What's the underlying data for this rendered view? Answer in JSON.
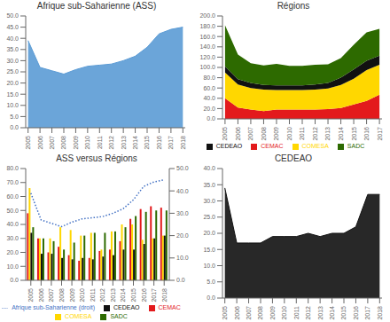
{
  "chart_data": [
    {
      "type": "area",
      "title": "Afrique sub-Saharienne (ASS)",
      "x": [
        2005,
        2006,
        2007,
        2008,
        2009,
        2010,
        2011,
        2012,
        2013,
        2014,
        2015,
        2016,
        2017,
        2018
      ],
      "values": [
        39,
        27,
        25.5,
        24,
        26,
        27.5,
        28,
        28.5,
        30,
        32,
        36,
        42,
        44,
        45
      ],
      "color": "#5b9bd5",
      "xlim": [
        2004.8,
        2018.2
      ],
      "xticks": [
        2005,
        2006,
        2007,
        2008,
        2009,
        2010,
        2011,
        2012,
        2013,
        2014,
        2015,
        2016,
        2017,
        2018
      ],
      "ylim": [
        0,
        50
      ],
      "yticks": [
        {
          "value": 0,
          "label": "0.0"
        },
        {
          "value": 5,
          "label": "5.0"
        },
        {
          "value": 10,
          "label": "10.0"
        },
        {
          "value": 15,
          "label": "15.0"
        },
        {
          "value": 20,
          "label": "20.0"
        },
        {
          "value": 25,
          "label": "25.0"
        },
        {
          "value": 30,
          "label": "30.0"
        },
        {
          "value": 35,
          "label": "35.0"
        },
        {
          "value": 40,
          "label": "40.0"
        },
        {
          "value": 45,
          "label": "45.0"
        },
        {
          "value": 50,
          "label": "50.0"
        }
      ],
      "grid": false
    },
    {
      "type": "area",
      "title": "Régions",
      "stacked": true,
      "x": [
        2005,
        2006,
        2007,
        2008,
        2009,
        2010,
        2011,
        2012,
        2013,
        2014,
        2015,
        2016,
        2017
      ],
      "series": [
        {
          "name": "CEMAC",
          "color": "#e31a1c",
          "values": [
            40,
            22,
            18,
            15,
            18,
            18,
            18,
            18,
            19,
            21,
            28,
            35,
            47
          ]
        },
        {
          "name": "COMESA",
          "color": "#ffd700",
          "values": [
            50,
            45,
            42,
            42,
            38,
            38,
            38,
            39,
            40,
            45,
            50,
            60,
            58
          ]
        },
        {
          "name": "CEDEAO",
          "color": "#111111",
          "values": [
            12,
            10,
            10,
            9,
            9,
            9,
            9,
            10,
            11,
            14,
            18,
            18,
            18
          ]
        },
        {
          "name": "SADC",
          "color": "#2d6a00",
          "values": [
            80,
            48,
            38,
            38,
            42,
            38,
            38,
            38,
            36,
            38,
            48,
            55,
            52
          ]
        }
      ],
      "xlim": [
        2004.8,
        2017.2
      ],
      "xticks": [
        2005,
        2006,
        2007,
        2008,
        2009,
        2010,
        2011,
        2012,
        2013,
        2014,
        2015,
        2016,
        2017
      ],
      "ylim": [
        0,
        200
      ],
      "yticks": [
        {
          "value": 0,
          "label": "0.0"
        },
        {
          "value": 20,
          "label": "20.0"
        },
        {
          "value": 40,
          "label": "40.0"
        },
        {
          "value": 60,
          "label": "60.0"
        },
        {
          "value": 80,
          "label": "80.0"
        },
        {
          "value": 100,
          "label": "100.0"
        },
        {
          "value": 120,
          "label": "120.0"
        },
        {
          "value": 140,
          "label": "140.0"
        },
        {
          "value": 160,
          "label": "160.0"
        },
        {
          "value": 180,
          "label": "180.0"
        },
        {
          "value": 200,
          "label": "200.0"
        }
      ],
      "grid": false,
      "legend": "bottom"
    },
    {
      "type": "bar",
      "title": "ASS versus Régions",
      "categories": [
        "2005",
        "2006",
        "2007",
        "2008",
        "2009",
        "2010",
        "2011",
        "2012",
        "2013",
        "2014",
        "2015",
        "2016",
        "2017",
        "2018"
      ],
      "series": [
        {
          "name": "CEMAC",
          "color": "#e31a1c",
          "values": [
            48,
            30,
            20,
            24,
            18,
            14,
            16,
            21,
            22,
            28,
            44,
            51,
            53,
            52
          ]
        },
        {
          "name": "COMESA",
          "color": "#ffd700",
          "values": [
            66,
            30,
            30,
            38,
            36,
            32,
            34,
            22,
            35,
            40,
            40,
            29,
            30,
            32
          ]
        },
        {
          "name": "CEDEAO",
          "color": "#111111",
          "values": [
            34,
            19,
            19,
            16,
            15,
            16,
            15,
            17,
            18,
            22,
            22,
            26,
            30,
            32
          ]
        },
        {
          "name": "SADC",
          "color": "#2d6a00",
          "values": [
            38,
            30,
            28,
            22,
            27,
            32,
            34,
            34,
            35,
            38,
            46,
            49,
            50,
            50
          ]
        },
        {
          "name": "Afrique sub-Saharienne (droit)",
          "type": "line",
          "color": "#4472c4",
          "line_style": "dotted",
          "axis": "y2",
          "values": [
            39,
            27,
            25.5,
            24,
            26,
            27.5,
            28,
            28.5,
            30,
            32,
            36,
            42,
            44,
            45
          ]
        }
      ],
      "ylim": [
        0,
        80
      ],
      "yticks": [
        {
          "value": 0,
          "label": "0.0"
        },
        {
          "value": 10,
          "label": "10.0"
        },
        {
          "value": 20,
          "label": "20.0"
        },
        {
          "value": 30,
          "label": "30.0"
        },
        {
          "value": 40,
          "label": "40.0"
        },
        {
          "value": 50,
          "label": "50.0"
        },
        {
          "value": 60,
          "label": "60.0"
        },
        {
          "value": 70,
          "label": "70.0"
        },
        {
          "value": 80,
          "label": "80.0"
        }
      ],
      "y2lim": [
        0,
        50
      ],
      "y2ticks": [
        {
          "value": 0,
          "label": "0.0"
        },
        {
          "value": 10,
          "label": "10.0"
        },
        {
          "value": 20,
          "label": "20.0"
        },
        {
          "value": 30,
          "label": "30.0"
        },
        {
          "value": 40,
          "label": "40.0"
        },
        {
          "value": 50,
          "label": "50.0"
        }
      ],
      "grid": false,
      "legend": "bottom"
    },
    {
      "type": "area",
      "title": "CEDEAO",
      "x": [
        2005,
        2006,
        2007,
        2008,
        2009,
        2010,
        2011,
        2012,
        2013,
        2014,
        2015,
        2016,
        2017,
        2018
      ],
      "values": [
        34,
        17,
        17,
        17,
        19,
        19,
        19,
        20,
        19,
        20,
        20,
        22,
        32,
        32
      ],
      "color": "#111111",
      "xlim": [
        2004.8,
        2018.2
      ],
      "xticks": [
        2005,
        2006,
        2007,
        2008,
        2009,
        2010,
        2011,
        2012,
        2013,
        2014,
        2015,
        2016,
        2017,
        2018
      ],
      "ylim": [
        0,
        40
      ],
      "yticks": [
        {
          "value": 0,
          "label": "0.0"
        },
        {
          "value": 5,
          "label": "5.0"
        },
        {
          "value": 10,
          "label": "10.0"
        },
        {
          "value": 15,
          "label": "15.0"
        },
        {
          "value": 20,
          "label": "20.0"
        },
        {
          "value": 25,
          "label": "25.0"
        },
        {
          "value": 30,
          "label": "30.0"
        },
        {
          "value": 35,
          "label": "35.0"
        },
        {
          "value": 40,
          "label": "40.0"
        }
      ],
      "grid": false
    }
  ]
}
